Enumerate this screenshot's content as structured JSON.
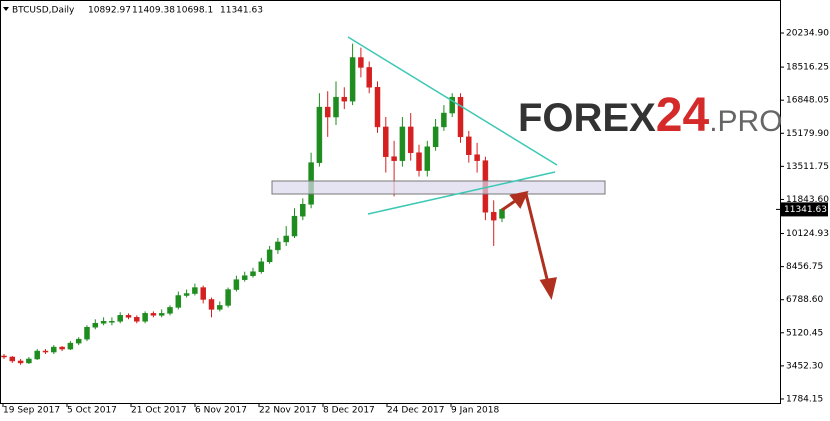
{
  "chart_data": {
    "type": "candlestick",
    "symbol": "BTCUSD,Daily",
    "open": [
      3950,
      3900,
      3700,
      3600,
      3800,
      4200,
      4150,
      4400,
      4300,
      4600,
      4800,
      5400,
      5600,
      5700,
      5700,
      6000,
      5900,
      5700,
      6100,
      6000,
      6100,
      6400,
      7000,
      7100,
      7400,
      6800,
      6300,
      6500,
      7300,
      7800,
      8000,
      8200,
      8700,
      9300,
      9700,
      10000,
      11000,
      11600,
      13700,
      16500,
      16000,
      17000,
      16800,
      19000,
      18500,
      17500,
      15500,
      14000,
      13800,
      15500,
      14200,
      13300,
      14500,
      15500,
      16200,
      17000,
      15000,
      14100,
      13800,
      11200,
      10892.97
    ],
    "high": [
      4050,
      3950,
      3800,
      3900,
      4300,
      4300,
      4500,
      4450,
      4700,
      4900,
      5500,
      5800,
      5900,
      5900,
      6150,
      6100,
      6000,
      6200,
      6200,
      6300,
      6500,
      7200,
      7300,
      7600,
      7500,
      6900,
      6700,
      7400,
      8000,
      8200,
      8400,
      8900,
      9500,
      9900,
      10500,
      11400,
      11900,
      14200,
      17200,
      17300,
      17800,
      17500,
      19700,
      19500,
      18800,
      17800,
      16000,
      14800,
      16000,
      16200,
      14600,
      14800,
      15900,
      16600,
      17200,
      17200,
      15300,
      14700,
      14000,
      11800,
      11409.38
    ],
    "low": [
      3800,
      3600,
      3500,
      3550,
      3750,
      4050,
      4050,
      4200,
      4250,
      4500,
      4700,
      5300,
      5500,
      5500,
      5600,
      5800,
      5600,
      5600,
      5900,
      5900,
      6000,
      6300,
      6900,
      7000,
      6600,
      5900,
      6200,
      6400,
      7200,
      7700,
      7900,
      8100,
      8600,
      9100,
      9500,
      9900,
      10800,
      11400,
      13500,
      15000,
      15600,
      16400,
      16600,
      18000,
      17200,
      15200,
      13200,
      12000,
      13500,
      13800,
      13000,
      13000,
      14300,
      15300,
      16000,
      14700,
      13700,
      13200,
      10800,
      9500,
      10698.1
    ],
    "close": [
      3900,
      3700,
      3600,
      3800,
      4200,
      4150,
      4400,
      4300,
      4600,
      4800,
      5400,
      5600,
      5700,
      5700,
      6000,
      5900,
      5700,
      6100,
      6000,
      6100,
      6400,
      7000,
      7100,
      7400,
      6800,
      6300,
      6500,
      7300,
      7800,
      8000,
      8200,
      8700,
      9300,
      9700,
      10000,
      11000,
      11600,
      13700,
      16500,
      16000,
      17000,
      16800,
      19000,
      18500,
      17500,
      15500,
      14000,
      13800,
      15500,
      14200,
      13300,
      14500,
      15500,
      16200,
      17000,
      15000,
      14100,
      13800,
      11200,
      10800,
      11341.63
    ],
    "up_color": "#1e8c1e",
    "down_color": "#d42020",
    "x_labels": [
      "19 Sep 2017",
      "5 Oct 2017",
      "21 Oct 2017",
      "6 Nov 2017",
      "22 Nov 2017",
      "8 Dec 2017",
      "24 Dec 2017",
      "9 Jan 2018"
    ],
    "ylim": [
      1580,
      21900
    ],
    "yticks": [
      {
        "value": 20234.9,
        "label": "20234.90"
      },
      18516.25,
      16848.05,
      {
        "value": 15179.9,
        "label": "15179.90"
      },
      13511.75,
      {
        "value": 11843.6,
        "label": "11843.60"
      },
      10124.93,
      8456.75,
      {
        "value": 6788.6,
        "label": "6788.60"
      },
      5120.45,
      {
        "value": 3452.3,
        "label": "3452.30"
      },
      1784.15
    ]
  },
  "logo": {
    "parts": [
      "FOREX",
      "24",
      ".PRO"
    ]
  }
}
